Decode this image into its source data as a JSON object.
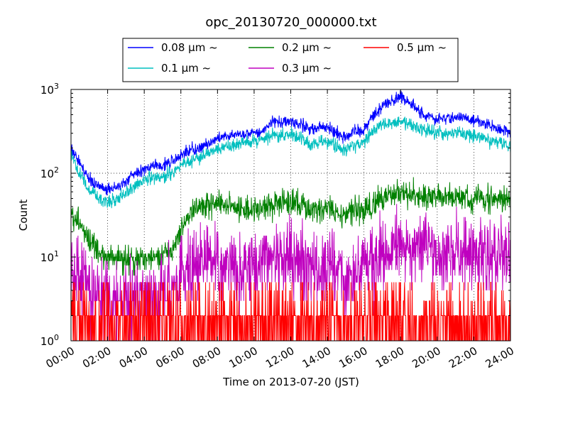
{
  "chart_data": {
    "type": "line",
    "title": "opc_20130720_000000.txt",
    "xlabel": "Time on 2013-07-20 (JST)",
    "ylabel": "Count",
    "y_scale": "log",
    "ylim": [
      1,
      1000
    ],
    "xlim": [
      "2013-07-20 00:00",
      "2013-07-21 00:00"
    ],
    "x_tick_labels": [
      "00:00",
      "02:00",
      "04:00",
      "06:00",
      "08:00",
      "10:00",
      "12:00",
      "14:00",
      "16:00",
      "18:00",
      "20:00",
      "22:00",
      "24:00"
    ],
    "y_tick_labels": [
      {
        "base": "10",
        "exp": "0"
      },
      {
        "base": "10",
        "exp": "1"
      },
      {
        "base": "10",
        "exp": "2"
      },
      {
        "base": "10",
        "exp": "3"
      }
    ],
    "grid": true,
    "legend_position": "top, outside plot",
    "x_hours": [
      0,
      0.5,
      1,
      1.5,
      2,
      2.5,
      3,
      3.5,
      4,
      4.5,
      5,
      5.5,
      6,
      6.5,
      7,
      7.5,
      8,
      8.5,
      9,
      9.5,
      10,
      10.5,
      11,
      11.5,
      12,
      12.5,
      13,
      13.5,
      14,
      14.5,
      15,
      15.5,
      16,
      16.5,
      17,
      17.5,
      18,
      18.5,
      19,
      19.5,
      20,
      20.5,
      21,
      21.5,
      22,
      22.5,
      23,
      23.5,
      24
    ],
    "series": [
      {
        "name": "0.08 μm ~",
        "color": "#0000ff",
        "noise": 0.035,
        "values": [
          200,
          130,
          85,
          70,
          65,
          68,
          80,
          100,
          110,
          125,
          120,
          140,
          170,
          185,
          200,
          230,
          260,
          280,
          290,
          295,
          300,
          320,
          420,
          400,
          410,
          380,
          330,
          350,
          360,
          300,
          270,
          320,
          330,
          500,
          640,
          720,
          820,
          700,
          560,
          470,
          440,
          450,
          470,
          460,
          430,
          390,
          360,
          330,
          300
        ]
      },
      {
        "name": "0.1 μm ~",
        "color": "#00bfbf",
        "noise": 0.04,
        "values": [
          170,
          95,
          62,
          50,
          45,
          50,
          58,
          70,
          80,
          90,
          90,
          100,
          125,
          140,
          150,
          175,
          190,
          210,
          220,
          230,
          240,
          250,
          290,
          280,
          285,
          270,
          220,
          240,
          240,
          210,
          190,
          225,
          230,
          320,
          380,
          390,
          420,
          390,
          340,
          320,
          300,
          300,
          310,
          300,
          280,
          260,
          250,
          230,
          200
        ]
      },
      {
        "name": "0.2 μm ~",
        "color": "#008000",
        "noise": 0.08,
        "values": [
          35,
          24,
          16,
          12,
          10,
          9,
          9,
          9,
          10,
          10,
          11,
          12,
          22,
          35,
          40,
          45,
          44,
          42,
          38,
          36,
          36,
          38,
          42,
          45,
          44,
          42,
          36,
          38,
          38,
          34,
          32,
          35,
          36,
          44,
          52,
          55,
          60,
          58,
          55,
          52,
          50,
          50,
          52,
          52,
          52,
          50,
          50,
          48,
          48
        ]
      },
      {
        "name": "0.3 μm ~",
        "color": "#bf00bf",
        "noise": 0.22,
        "values": [
          7,
          6,
          4,
          3.5,
          3,
          3,
          3,
          3,
          3,
          3.5,
          4,
          4,
          6,
          8,
          9,
          10,
          9,
          8,
          7.5,
          7.5,
          8,
          9,
          10,
          10,
          9,
          9,
          8,
          7,
          7,
          6.5,
          6,
          7,
          8,
          9,
          11,
          12,
          13,
          13,
          12,
          12,
          11,
          11,
          11,
          11,
          11,
          10,
          10,
          10,
          10
        ]
      },
      {
        "name": "0.5 μm ~",
        "color": "#ff0000",
        "noise": 0.3,
        "values": [
          1.8,
          1.7,
          1.6,
          1.5,
          1.5,
          1.5,
          1.5,
          1.5,
          1.5,
          1.5,
          1.6,
          1.6,
          1.8,
          2,
          2.1,
          2.1,
          2,
          2,
          2,
          2,
          2,
          2,
          2.1,
          2.1,
          2.1,
          2,
          2,
          2,
          2,
          2,
          2,
          2,
          2.1,
          2.2,
          2.4,
          2.5,
          2.6,
          2.6,
          2.5,
          2.5,
          2.4,
          2.4,
          2.4,
          2.4,
          2.3,
          2.3,
          2.3,
          2.3,
          2.3
        ]
      }
    ]
  }
}
